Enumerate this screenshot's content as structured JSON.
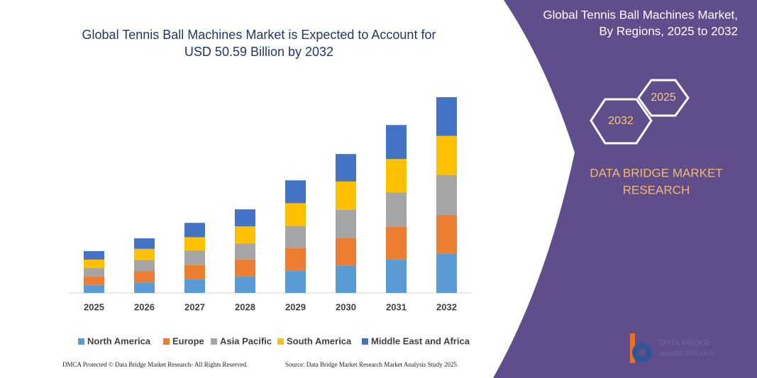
{
  "chart_data": {
    "type": "bar",
    "stacked": true,
    "title": [
      "Global Tennis Ball Machines Market is Expected to Account for",
      "USD 50.59 Billion by 2032"
    ],
    "categories": [
      "2025",
      "2026",
      "2027",
      "2028",
      "2029",
      "2030",
      "2031",
      "2032"
    ],
    "series": [
      {
        "name": "North America",
        "color": "#5b9bd5",
        "values": [
          2.0,
          2.7,
          3.5,
          4.2,
          5.7,
          7.1,
          8.6,
          10.1
        ]
      },
      {
        "name": "Europe",
        "color": "#ed7d31",
        "values": [
          2.2,
          2.9,
          3.7,
          4.4,
          5.9,
          7.1,
          8.6,
          10.1
        ]
      },
      {
        "name": "Asia Pacific",
        "color": "#a5a5a5",
        "values": [
          2.2,
          2.9,
          3.7,
          4.2,
          5.7,
          7.3,
          8.8,
          10.3
        ]
      },
      {
        "name": "South America",
        "color": "#ffc000",
        "values": [
          2.2,
          2.9,
          3.5,
          4.4,
          5.9,
          7.3,
          8.6,
          10.1
        ]
      },
      {
        "name": "Middle East and Africa",
        "color": "#4472c4",
        "values": [
          2.2,
          2.7,
          3.7,
          4.4,
          5.9,
          7.1,
          8.8,
          10.0
        ]
      }
    ]
  },
  "panel": {
    "title": [
      "Global Tennis Ball Machines Market,",
      "By Regions, 2025 to 2032"
    ],
    "hex_start": "2025",
    "hex_end": "2032",
    "brand": [
      "DATA BRIDGE MARKET",
      "RESEARCH"
    ]
  },
  "footer": {
    "left": "DMCA Protected © Data Bridge Market Research- All Rights Reserved.",
    "right": "Source: Data Bridge Market Research Market Analysis Study 2025"
  },
  "logo": {
    "name": "DATA BRIDGE",
    "tagline": "MARKET RESEARCH"
  }
}
